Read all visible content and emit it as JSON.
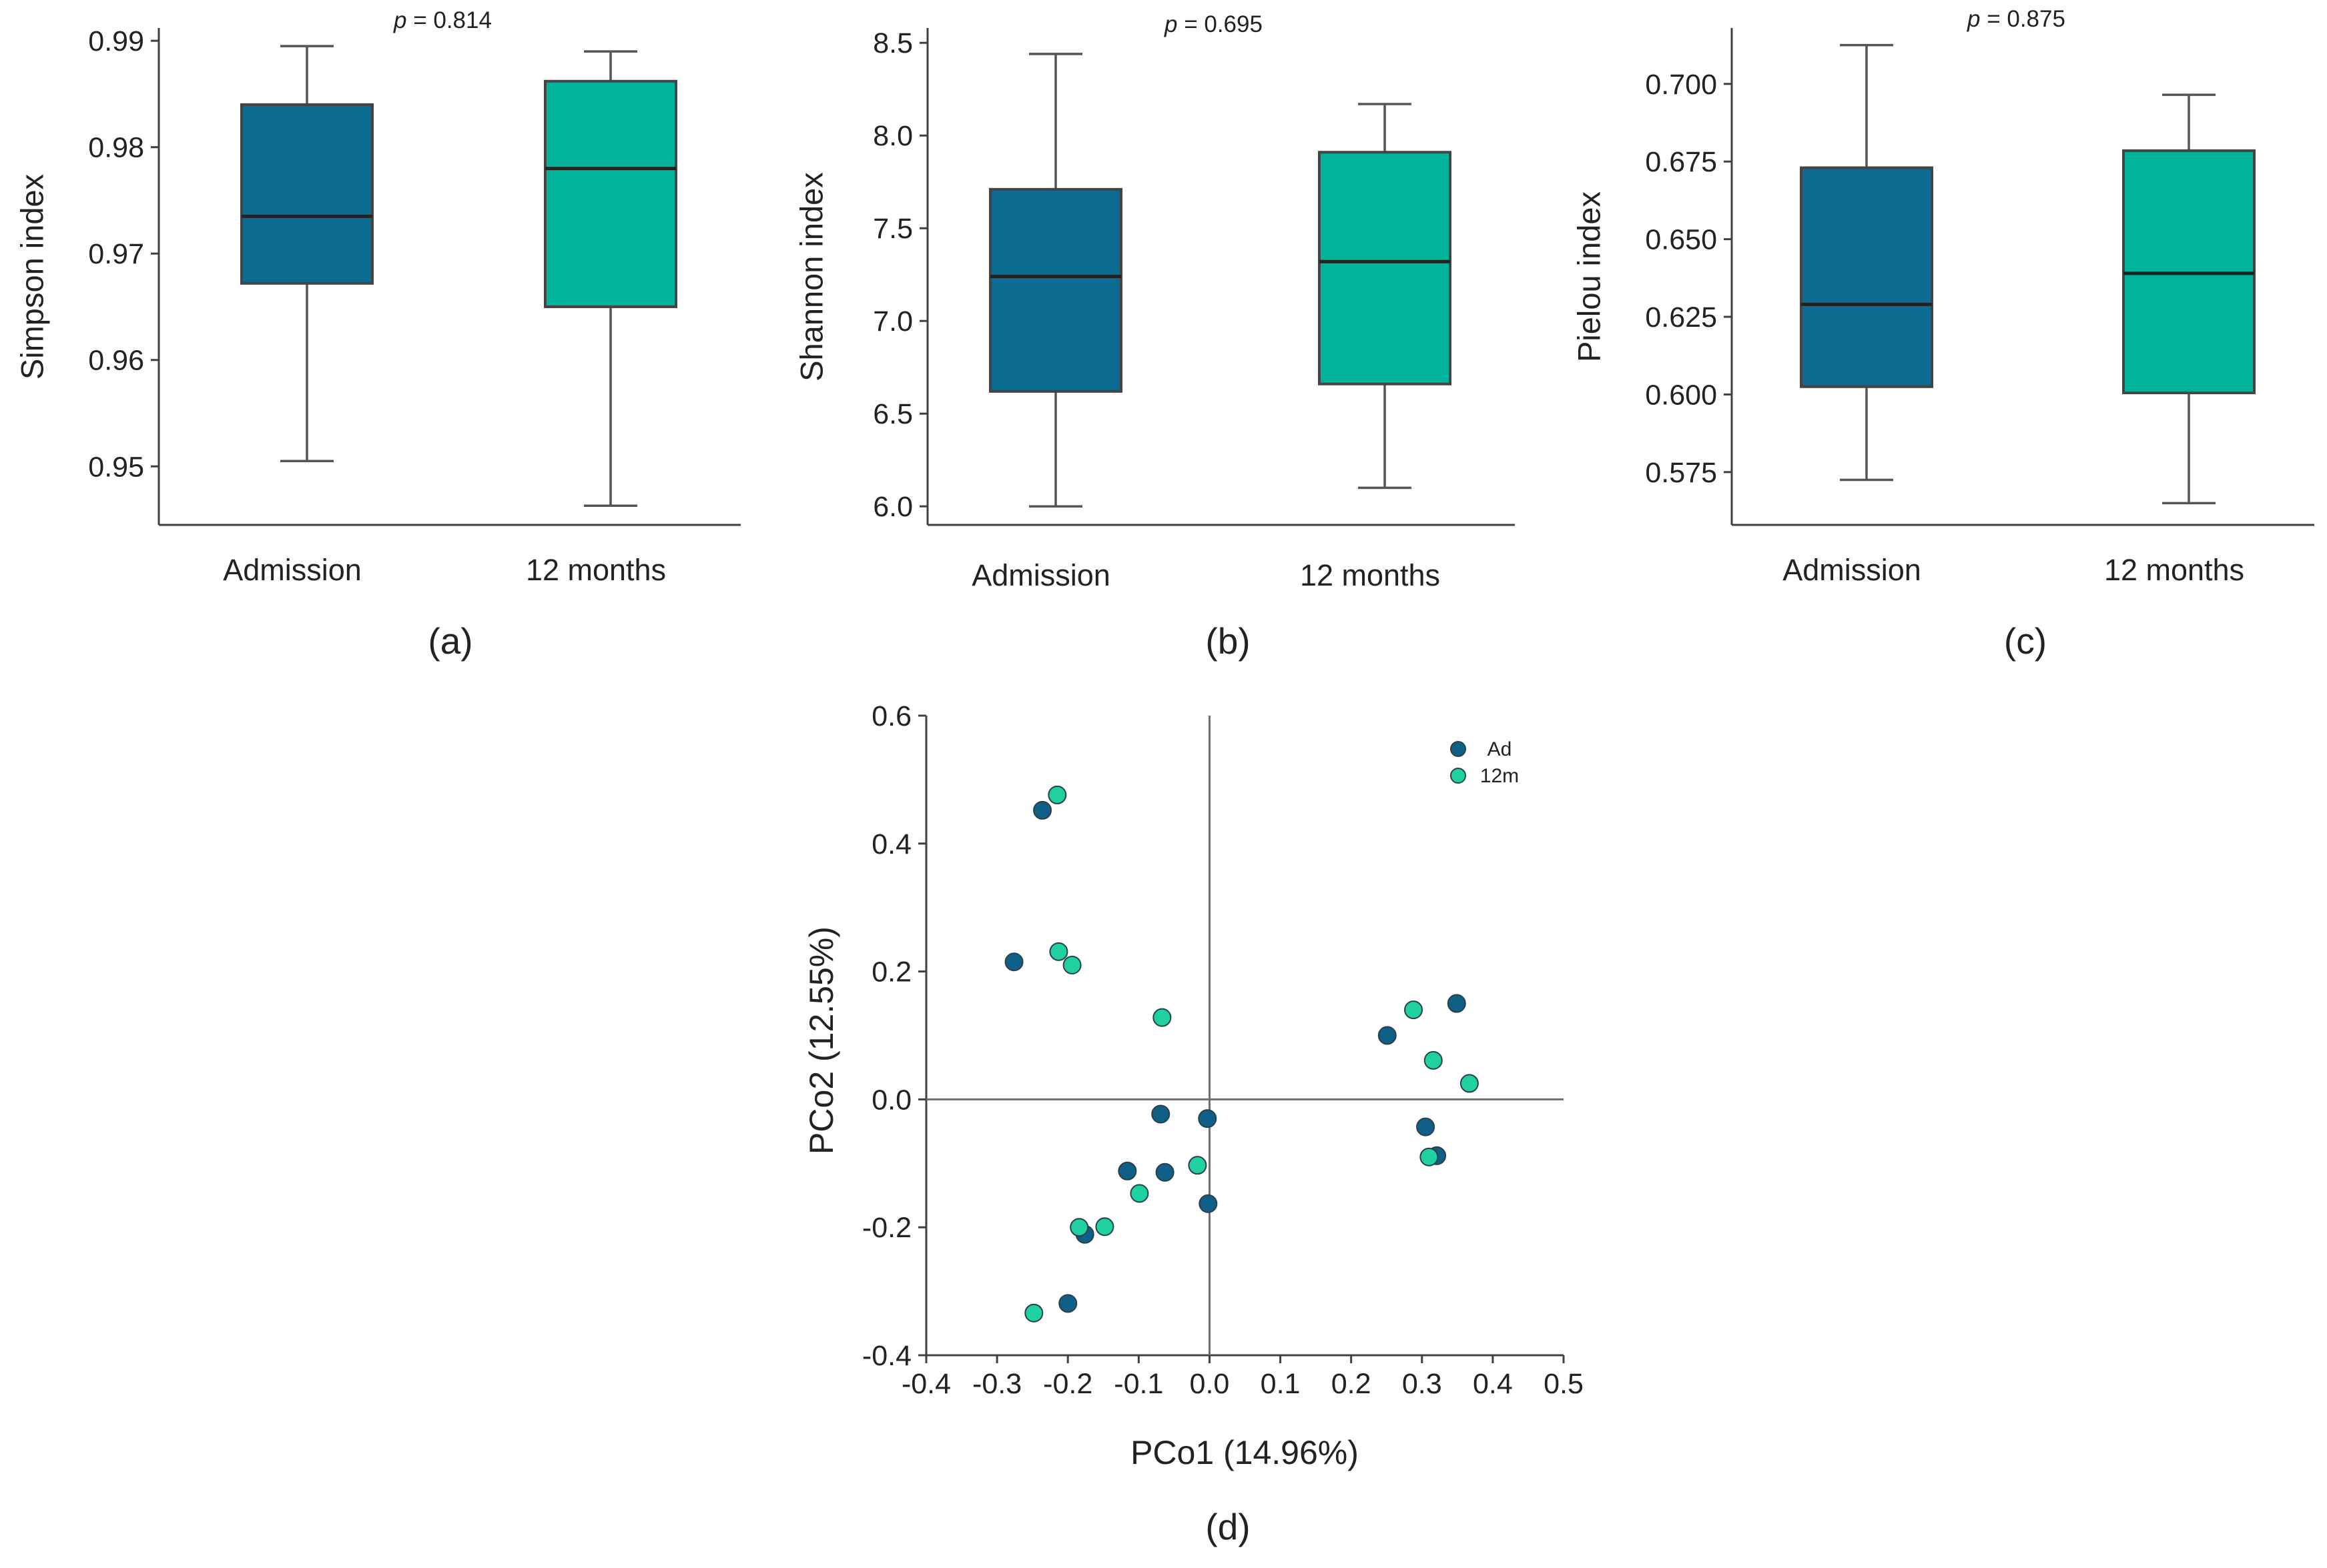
{
  "colors": {
    "admission": "#0b6b91",
    "twelve_months": "#00b39b",
    "pco_ad": "#0f5f86",
    "pco_12m": "#1fd0a0"
  },
  "chart_data": [
    {
      "type": "box",
      "panel": "(a)",
      "ylabel": "Simpson index",
      "p_label": "p",
      "p_value": "= 0.814",
      "ylim": [
        0.9445,
        0.9912
      ],
      "yticks": [
        0.95,
        0.96,
        0.97,
        0.98,
        0.99
      ],
      "ytick_labels": [
        "0.95",
        "0.96",
        "0.97",
        "0.98",
        "0.99"
      ],
      "categories": [
        "Admission",
        "12 months"
      ],
      "boxes": [
        {
          "name": "Admission",
          "min": 0.9505,
          "q1": 0.9672,
          "median": 0.9735,
          "q3": 0.984,
          "max": 0.9895
        },
        {
          "name": "12 months",
          "min": 0.9463,
          "q1": 0.965,
          "median": 0.978,
          "q3": 0.9862,
          "max": 0.989
        }
      ]
    },
    {
      "type": "box",
      "panel": "(b)",
      "ylabel": "Shannon index",
      "p_label": "p",
      "p_value": "= 0.695",
      "ylim": [
        5.9,
        8.58
      ],
      "yticks": [
        6.0,
        6.5,
        7.0,
        7.5,
        8.0,
        8.5
      ],
      "ytick_labels": [
        "6.0",
        "6.5",
        "7.0",
        "7.5",
        "8.0",
        "8.5"
      ],
      "categories": [
        "Admission",
        "12 months"
      ],
      "boxes": [
        {
          "name": "Admission",
          "min": 6.0,
          "q1": 6.62,
          "median": 7.24,
          "q3": 7.71,
          "max": 8.44
        },
        {
          "name": "12 months",
          "min": 6.1,
          "q1": 6.66,
          "median": 7.32,
          "q3": 7.91,
          "max": 8.17
        }
      ]
    },
    {
      "type": "box",
      "panel": "(c)",
      "ylabel": "Pielou index",
      "p_label": "p",
      "p_value": "= 0.875",
      "ylim": [
        0.558,
        0.718
      ],
      "yticks": [
        0.575,
        0.6,
        0.625,
        0.65,
        0.675,
        0.7
      ],
      "ytick_labels": [
        "0.575",
        "0.600",
        "0.625",
        "0.650",
        "0.675",
        "0.700"
      ],
      "categories": [
        "Admission",
        "12 months"
      ],
      "boxes": [
        {
          "name": "Admission",
          "min": 0.5725,
          "q1": 0.6025,
          "median": 0.629,
          "q3": 0.673,
          "max": 0.7125
        },
        {
          "name": "12 months",
          "min": 0.565,
          "q1": 0.6005,
          "median": 0.639,
          "q3": 0.6785,
          "max": 0.6965
        }
      ]
    },
    {
      "type": "scatter",
      "panel": "(d)",
      "xlabel": "PCo1 (14.96%)",
      "ylabel": "PCo2 (12.55%)",
      "xlim": [
        -0.4,
        0.5
      ],
      "ylim": [
        -0.4,
        0.6
      ],
      "xticks": [
        -0.4,
        -0.3,
        -0.2,
        -0.1,
        0.0,
        0.1,
        0.2,
        0.3,
        0.4,
        0.5
      ],
      "xtick_labels": [
        "-0.4",
        "-0.3",
        "-0.2",
        "-0.1",
        "0.0",
        "0.1",
        "0.2",
        "0.3",
        "0.4",
        "0.5"
      ],
      "yticks": [
        -0.4,
        -0.2,
        0.0,
        0.2,
        0.4,
        0.6
      ],
      "ytick_labels": [
        "-0.4",
        "-0.2",
        "0.0",
        "0.2",
        "0.4",
        "0.6"
      ],
      "legend": [
        "Ad",
        "12m"
      ],
      "legend_loc": "top-right",
      "series": [
        {
          "name": "Ad",
          "points": [
            [
              -0.236,
              0.452
            ],
            [
              -0.276,
              0.215
            ],
            [
              -0.069,
              -0.023
            ],
            [
              -0.003,
              -0.03
            ],
            [
              -0.116,
              -0.112
            ],
            [
              -0.063,
              -0.114
            ],
            [
              -0.176,
              -0.211
            ],
            [
              -0.2,
              -0.319
            ],
            [
              -0.002,
              -0.163
            ],
            [
              0.251,
              0.1
            ],
            [
              0.349,
              0.15
            ],
            [
              0.305,
              -0.043
            ],
            [
              0.321,
              -0.088
            ]
          ]
        },
        {
          "name": "12m",
          "points": [
            [
              -0.215,
              0.476
            ],
            [
              -0.213,
              0.231
            ],
            [
              -0.194,
              0.21
            ],
            [
              -0.067,
              0.128
            ],
            [
              -0.017,
              -0.103
            ],
            [
              -0.099,
              -0.147
            ],
            [
              -0.184,
              -0.2
            ],
            [
              -0.148,
              -0.199
            ],
            [
              -0.248,
              -0.334
            ],
            [
              0.288,
              0.14
            ],
            [
              0.316,
              0.061
            ],
            [
              0.367,
              0.025
            ],
            [
              0.31,
              -0.09
            ]
          ]
        }
      ]
    }
  ]
}
